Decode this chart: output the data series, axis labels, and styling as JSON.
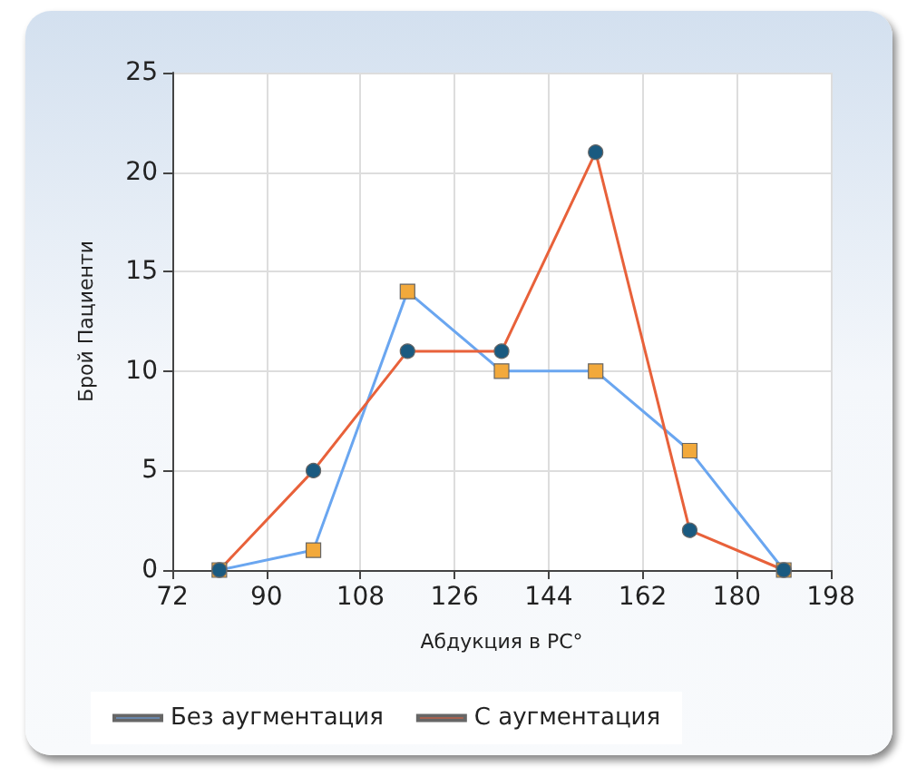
{
  "chart_data": {
    "type": "line",
    "xlabel": "Абдукция в PC°",
    "ylabel": "Брой Пациенти",
    "x": [
      81,
      99,
      117,
      135,
      153,
      171,
      189
    ],
    "xlim": [
      72,
      198
    ],
    "xticks": [
      72,
      90,
      108,
      126,
      144,
      162,
      180,
      198
    ],
    "ylim": [
      0,
      25
    ],
    "yticks": [
      0,
      5,
      10,
      15,
      20,
      25
    ],
    "grid": true,
    "legend": "bottom left",
    "series": [
      {
        "name": "Без аугментация",
        "color": "#6aa6f0",
        "marker": "square",
        "colors": [
          "#f2a93b",
          "#f2a93b",
          "#f2a93b",
          "#f2a93b",
          "#f2a93b",
          "#f2a93b",
          "#f2a93b"
        ],
        "values": [
          0,
          1,
          14,
          10,
          10,
          6,
          0
        ]
      },
      {
        "name": "С аугментация",
        "color": "#e8613a",
        "marker": "circle",
        "colors": [
          "#1a5a80",
          "#1a5a80",
          "#1a5a80",
          "#1a5a80",
          "#1a5a80",
          "#1a5a80",
          "#1a5a80"
        ],
        "values": [
          0,
          5,
          11,
          11,
          21,
          2,
          0
        ]
      }
    ]
  }
}
